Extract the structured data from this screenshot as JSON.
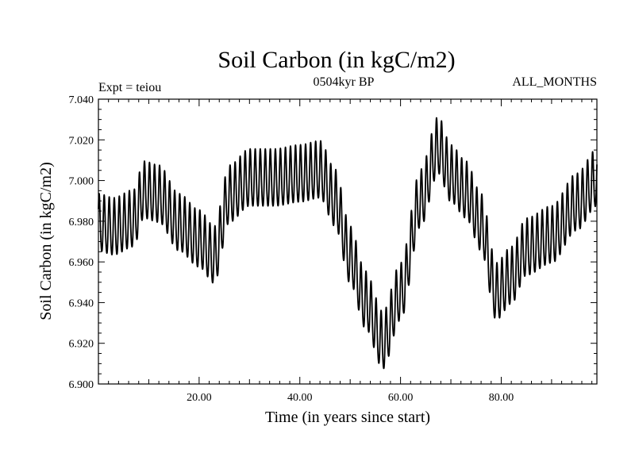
{
  "chart_data": {
    "type": "line",
    "title": "Soil Carbon (in kgC/m2)",
    "subtitle": "0504kyr BP",
    "left_label": "Expt = teiou",
    "right_label": "ALL_MONTHS",
    "xlabel": "Time (in years since start)",
    "ylabel": "Soil Carbon (in kgC/m2)",
    "xlim": [
      0,
      99
    ],
    "ylim": [
      6.9,
      7.04
    ],
    "x_ticks": [
      20,
      40,
      60,
      80
    ],
    "x_tick_labels": [
      "20.00",
      "40.00",
      "60.00",
      "80.00"
    ],
    "y_ticks": [
      6.9,
      6.92,
      6.94,
      6.96,
      6.98,
      7.0,
      7.02,
      7.04
    ],
    "y_tick_labels": [
      "6.900",
      "6.920",
      "6.940",
      "6.960",
      "6.980",
      "7.000",
      "7.020",
      "7.040"
    ],
    "color": "#000000",
    "monthly_cycle_amplitude": 0.014,
    "envelope_midline": {
      "x": [
        0,
        3,
        7,
        9,
        12,
        16,
        20,
        23,
        26,
        30,
        35,
        40,
        44,
        47,
        50,
        53,
        56.5,
        60,
        64,
        67.5,
        70,
        73,
        76,
        79,
        82,
        85,
        90,
        95,
        99
      ],
      "y": [
        6.978,
        6.976,
        6.98,
        6.994,
        6.992,
        6.978,
        6.97,
        6.962,
        6.992,
        7.0,
        7.0,
        7.002,
        7.004,
        6.99,
        6.962,
        6.94,
        6.92,
        6.944,
        6.99,
        7.016,
        7.002,
        6.994,
        6.978,
        6.944,
        6.952,
        6.966,
        6.972,
        6.988,
        7.0
      ]
    }
  }
}
